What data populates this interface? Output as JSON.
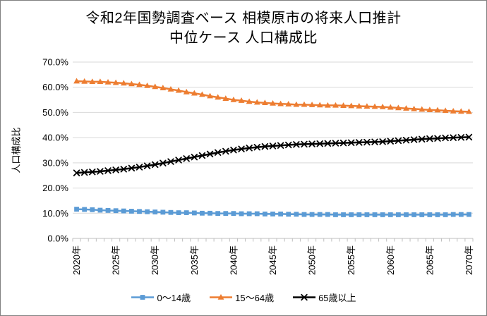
{
  "title": {
    "line1": "令和2年国勢調査ベース 相模原市の将来人口推計",
    "line2": "中位ケース 人口構成比"
  },
  "colors": {
    "grid": "#D9D9D9",
    "axis": "#BFBFBF",
    "text": "#000000",
    "frame": "#808080",
    "series_blue": "#5B9BD5",
    "series_orange": "#ED7D31",
    "series_black": "#000000"
  },
  "chart_data": {
    "type": "line",
    "title": "令和2年国勢調査ベース 相模原市の将来人口推計 中位ケース 人口構成比",
    "xlabel": "",
    "ylabel": "人口構成比",
    "x_suffix": "年",
    "x_tick_interval": 5,
    "ylim": [
      0,
      70
    ],
    "ytick_step": 10,
    "ytick_format": "0.0%",
    "grid": true,
    "legend_position": "bottom",
    "x": [
      2020,
      2021,
      2022,
      2023,
      2024,
      2025,
      2026,
      2027,
      2028,
      2029,
      2030,
      2031,
      2032,
      2033,
      2034,
      2035,
      2036,
      2037,
      2038,
      2039,
      2040,
      2041,
      2042,
      2043,
      2044,
      2045,
      2046,
      2047,
      2048,
      2049,
      2050,
      2051,
      2052,
      2053,
      2054,
      2055,
      2056,
      2057,
      2058,
      2059,
      2060,
      2061,
      2062,
      2063,
      2064,
      2065,
      2066,
      2067,
      2068,
      2069,
      2070
    ],
    "x_tick_labels": [
      "2020年",
      "2025年",
      "2030年",
      "2035年",
      "2040年",
      "2045年",
      "2050年",
      "2055年",
      "2060年",
      "2065年",
      "2070年"
    ],
    "series": [
      {
        "key": "age-0-14",
        "name": "0〜14歳",
        "color": "#5B9BD5",
        "marker": "square",
        "values": [
          11.6,
          11.5,
          11.4,
          11.2,
          11.1,
          11.0,
          10.9,
          10.8,
          10.7,
          10.6,
          10.5,
          10.4,
          10.3,
          10.2,
          10.2,
          10.1,
          10.0,
          10.0,
          9.9,
          9.9,
          9.9,
          9.8,
          9.8,
          9.8,
          9.7,
          9.7,
          9.7,
          9.6,
          9.6,
          9.5,
          9.5,
          9.5,
          9.5,
          9.4,
          9.4,
          9.4,
          9.4,
          9.4,
          9.4,
          9.4,
          9.4,
          9.4,
          9.4,
          9.4,
          9.4,
          9.4,
          9.4,
          9.4,
          9.5,
          9.5,
          9.5
        ]
      },
      {
        "key": "age-15-64",
        "name": "15〜64歳",
        "color": "#ED7D31",
        "marker": "triangle",
        "values": [
          62.4,
          62.3,
          62.2,
          62.2,
          62.0,
          61.8,
          61.6,
          61.3,
          61.0,
          60.6,
          60.2,
          59.7,
          59.2,
          58.7,
          58.1,
          57.6,
          57.1,
          56.5,
          56.0,
          55.5,
          55.0,
          54.7,
          54.3,
          54.0,
          53.8,
          53.6,
          53.4,
          53.3,
          53.1,
          53.1,
          53.0,
          52.9,
          52.8,
          52.8,
          52.7,
          52.6,
          52.5,
          52.4,
          52.3,
          52.2,
          52.0,
          51.8,
          51.6,
          51.4,
          51.2,
          51.0,
          50.9,
          50.7,
          50.5,
          50.4,
          50.3
        ]
      },
      {
        "key": "age-65-plus",
        "name": "65歳以上",
        "color": "#000000",
        "marker": "x",
        "values": [
          26.0,
          26.2,
          26.4,
          26.6,
          26.9,
          27.2,
          27.5,
          27.9,
          28.3,
          28.8,
          29.3,
          29.9,
          30.5,
          31.1,
          31.7,
          32.3,
          32.9,
          33.5,
          34.1,
          34.6,
          35.1,
          35.5,
          35.9,
          36.2,
          36.5,
          36.7,
          36.9,
          37.1,
          37.3,
          37.4,
          37.5,
          37.6,
          37.7,
          37.8,
          37.9,
          38.0,
          38.1,
          38.2,
          38.3,
          38.4,
          38.6,
          38.8,
          39.0,
          39.2,
          39.4,
          39.6,
          39.7,
          39.9,
          40.0,
          40.1,
          40.2
        ]
      }
    ]
  }
}
